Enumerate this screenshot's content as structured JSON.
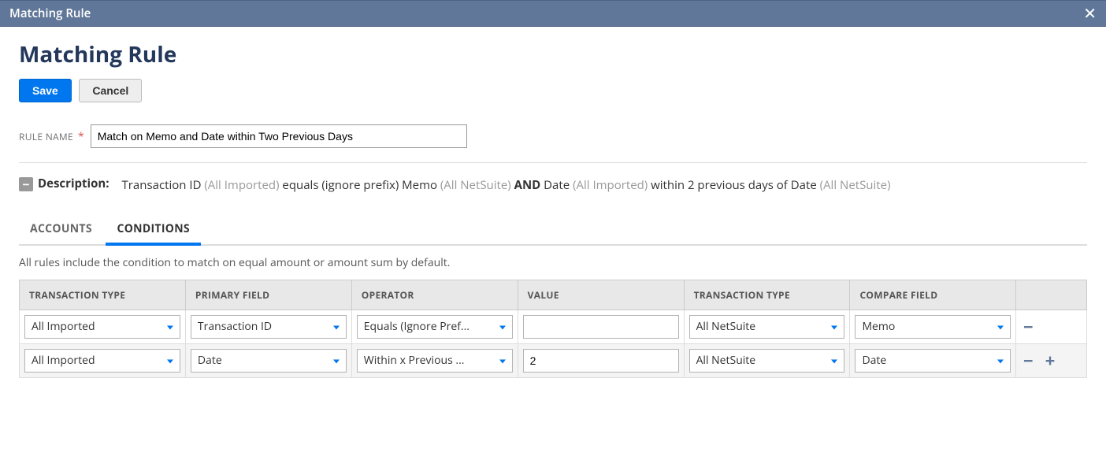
{
  "modal": {
    "title": "Matching Rule"
  },
  "page": {
    "title": "Matching Rule"
  },
  "buttons": {
    "save": "Save",
    "cancel": "Cancel"
  },
  "ruleName": {
    "label": "RULE NAME",
    "value": "Match on Memo and Date within Two Previous Days"
  },
  "description": {
    "label": "Description:",
    "parts": {
      "p1": "Transaction ID ",
      "p2": "(All Imported) ",
      "p3": "equals (ignore prefix) Memo ",
      "p4": "(All NetSuite) ",
      "p5": "AND",
      "p6": " Date ",
      "p7": "(All Imported) ",
      "p8": "within 2 previous days of Date ",
      "p9": "(All NetSuite)"
    }
  },
  "tabs": {
    "accounts": "ACCOUNTS",
    "conditions": "CONDITIONS"
  },
  "note": "All rules include the condition to match on equal amount or amount sum by default.",
  "columns": {
    "txType": "TRANSACTION TYPE",
    "primaryField": "PRIMARY FIELD",
    "operator": "OPERATOR",
    "value": "VALUE",
    "txType2": "TRANSACTION TYPE",
    "compareField": "COMPARE FIELD"
  },
  "rows": [
    {
      "txType": "All Imported",
      "primaryField": "Transaction ID",
      "operator": "Equals (Ignore Pref...",
      "value": "",
      "txType2": "All NetSuite",
      "compareField": "Memo"
    },
    {
      "txType": "All Imported",
      "primaryField": "Date",
      "operator": "Within x Previous ...",
      "value": "2",
      "txType2": "All NetSuite",
      "compareField": "Date"
    }
  ]
}
